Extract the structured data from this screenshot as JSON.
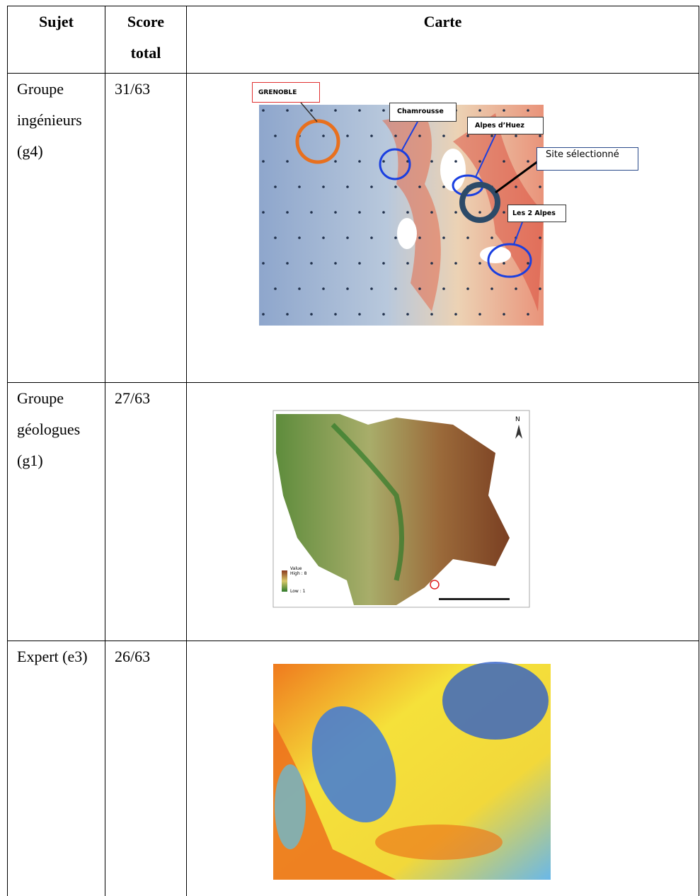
{
  "table": {
    "header": [
      "Sujet",
      "Score total",
      "Carte"
    ],
    "rows": [
      {
        "subject": "Groupe ingénieurs (g4)",
        "score": "31/63",
        "map_labels": [
          "GRENOBLE",
          "Chamrousse",
          "Alpes d’Huez",
          "Site sélectionné",
          "Les 2 Alpes"
        ]
      },
      {
        "subject": "Groupe géologues (g1)",
        "score": "27/63",
        "map_labels": [
          "N",
          "Value",
          "High : 8",
          "Low : 1"
        ]
      },
      {
        "subject": "Expert (e3)",
        "score": "26/63"
      }
    ]
  }
}
